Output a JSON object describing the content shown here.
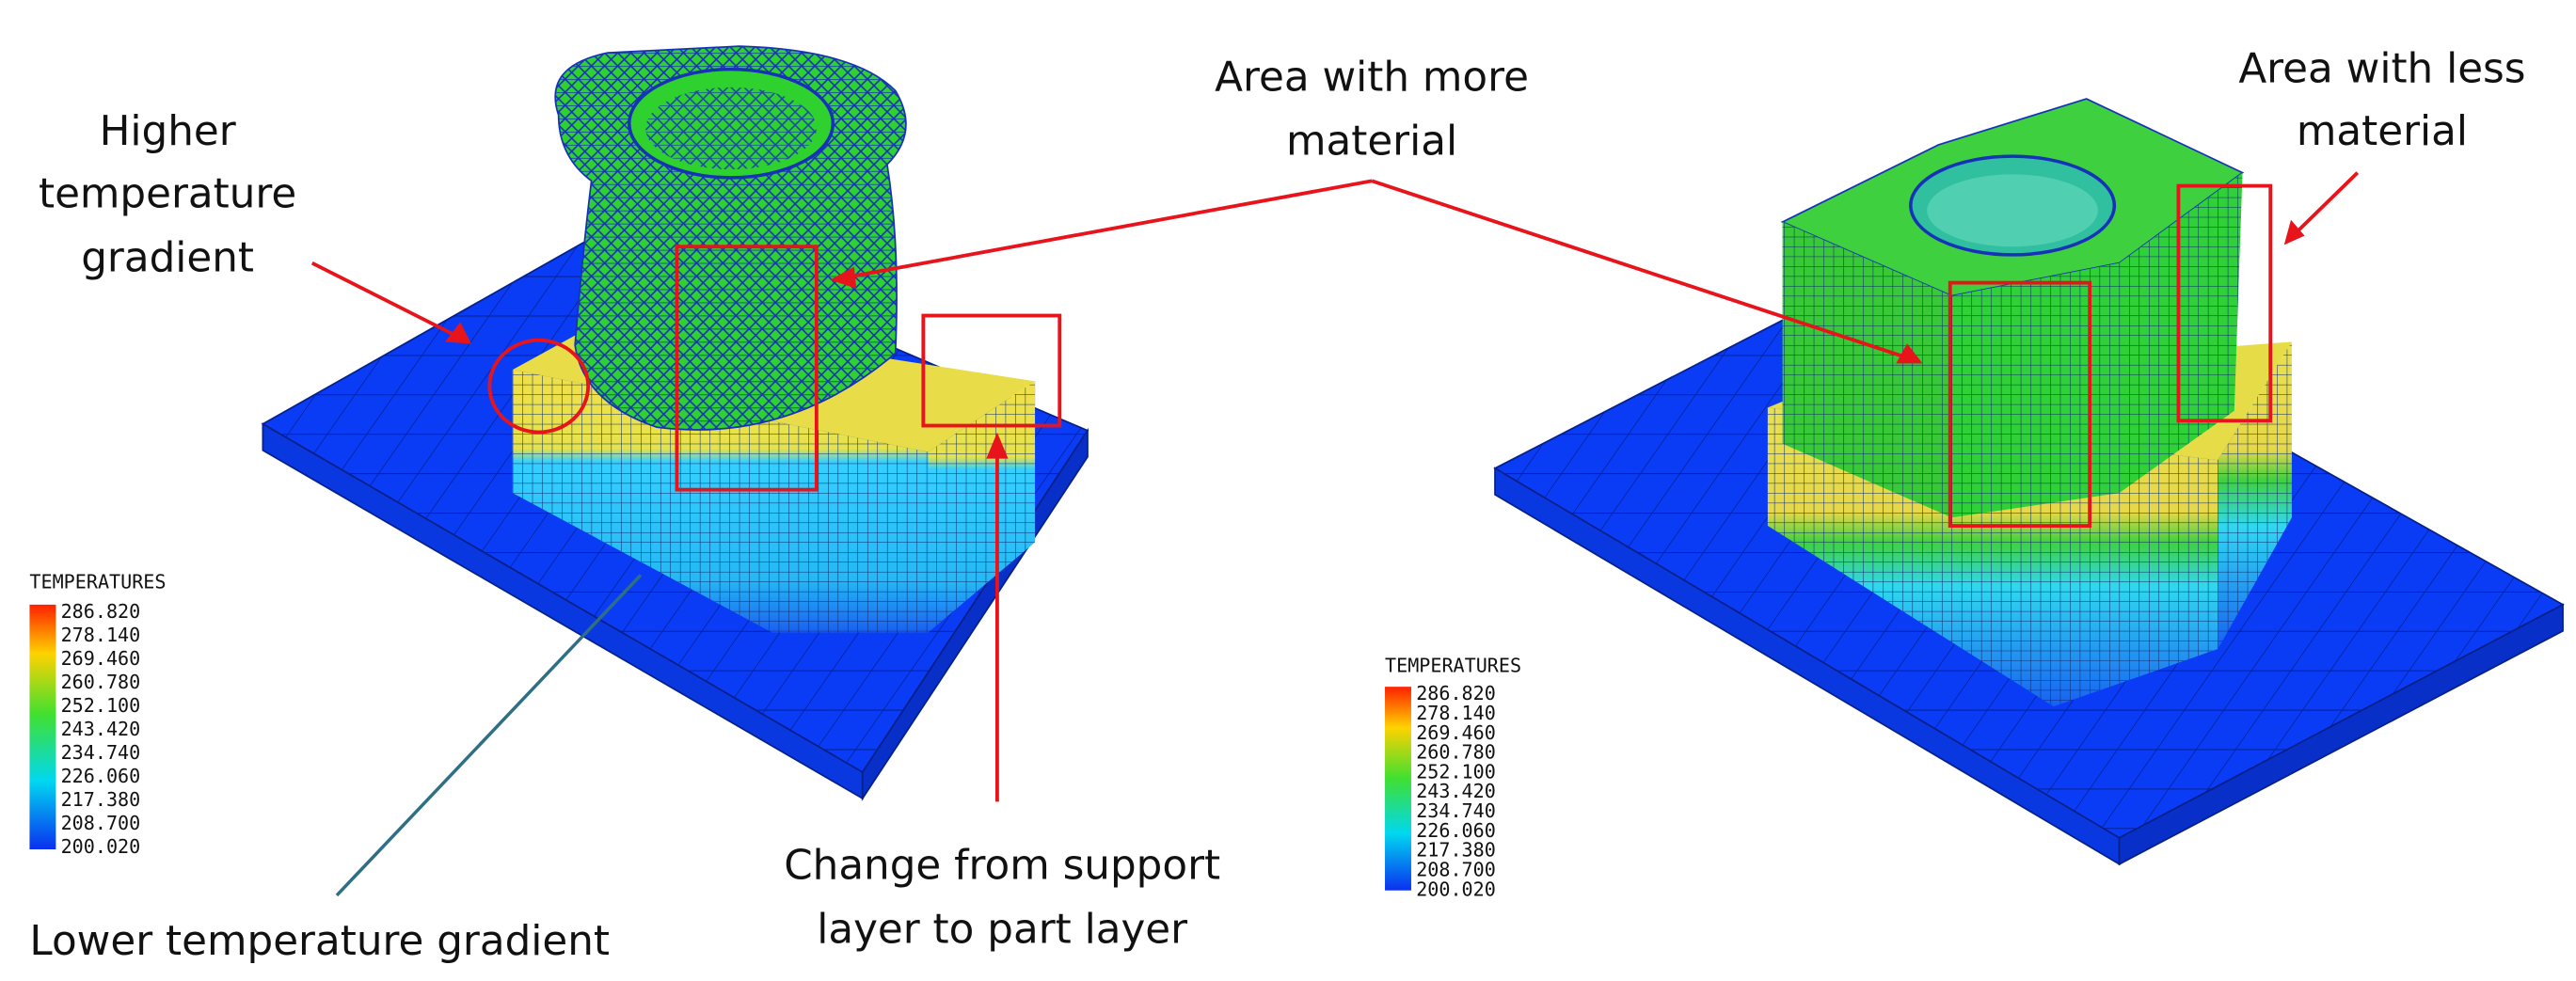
{
  "annotations": [
    {
      "lines": [
        "Higher",
        "temperature",
        "gradient"
      ]
    },
    {
      "lines": [
        "Area with more",
        "material"
      ]
    },
    {
      "lines": [
        "Area with less",
        "material"
      ]
    },
    {
      "lines": [
        "Change from support",
        "layer to part layer"
      ]
    },
    {
      "lines": [
        "Lower temperature gradient"
      ]
    }
  ],
  "legends": [
    {
      "title": "TEMPERATURES",
      "labels": [
        "286.820",
        "278.140",
        "269.460",
        "260.780",
        "252.100",
        "243.420",
        "234.740",
        "226.060",
        "217.380",
        "208.700",
        "200.020"
      ]
    },
    {
      "title": "TEMPERATURES",
      "labels": [
        "286.820",
        "278.140",
        "269.460",
        "260.780",
        "252.100",
        "243.420",
        "234.740",
        "226.060",
        "217.380",
        "208.700",
        "200.020"
      ]
    }
  ]
}
